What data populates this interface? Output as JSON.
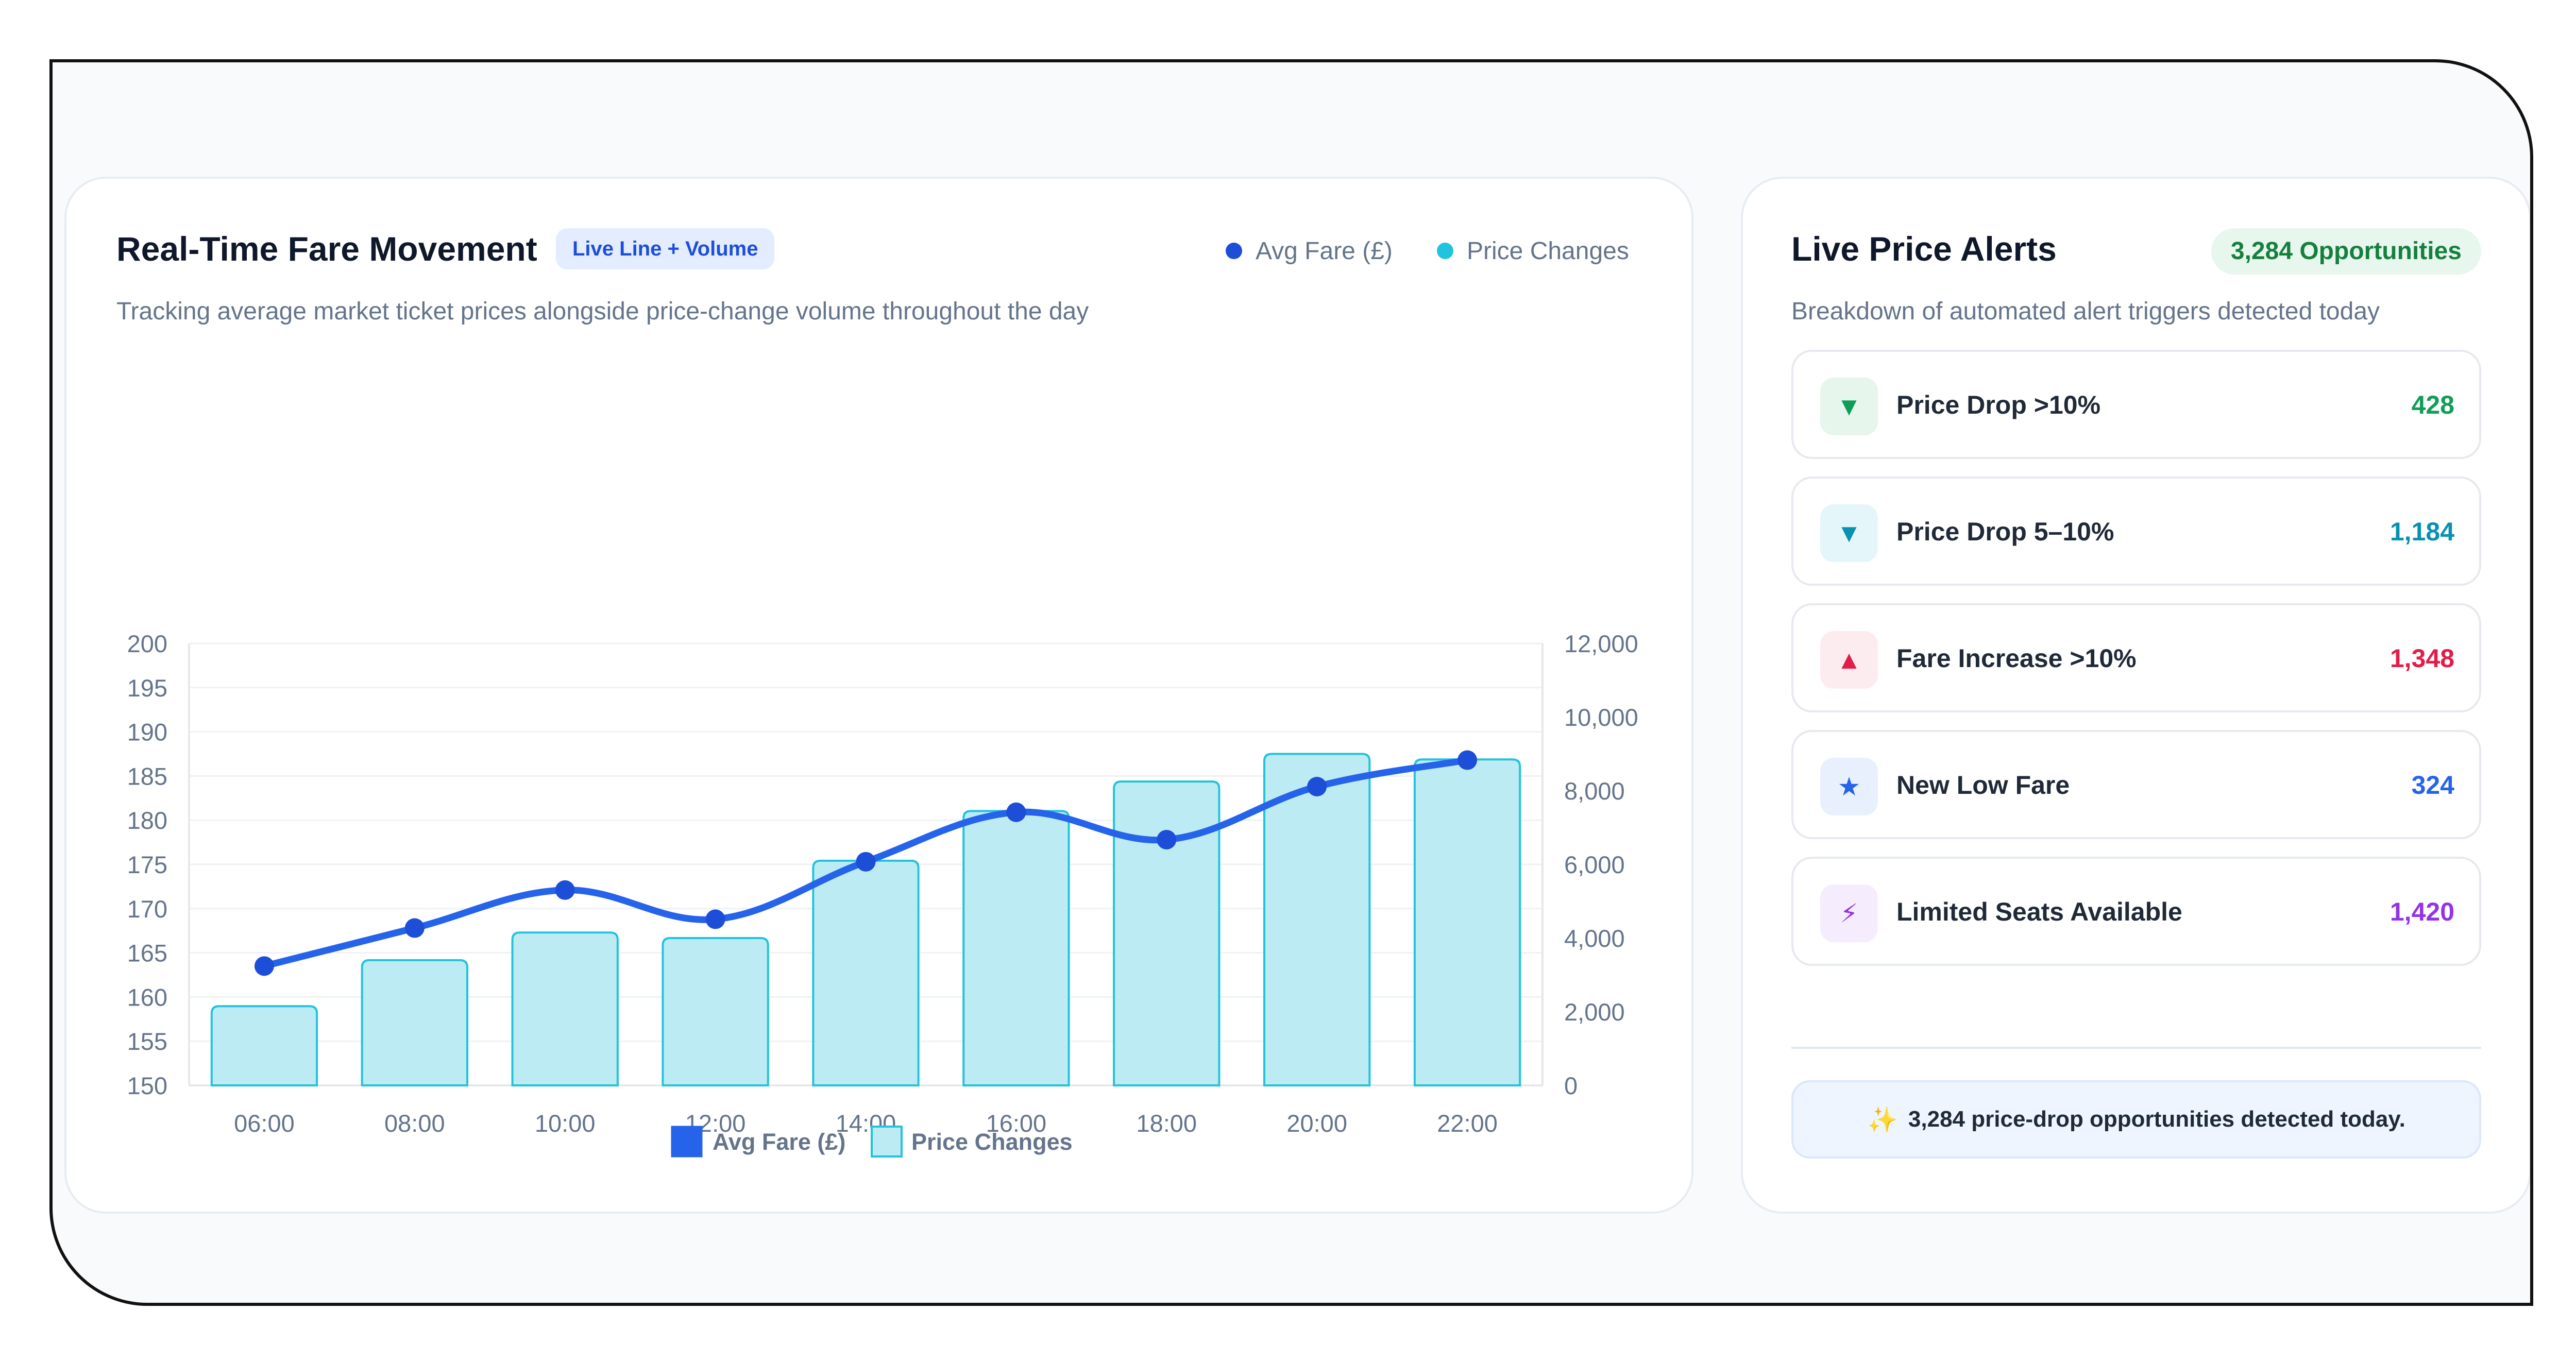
{
  "chart_card": {
    "title": "Real-Time Fare Movement",
    "tag": "Live Line + Volume",
    "subtitle": "Tracking average market ticket prices alongside price-change volume throughout the day",
    "legend_top": [
      {
        "label": "Avg Fare (£)",
        "color": "#1d4ed8"
      },
      {
        "label": "Price Changes",
        "color": "#22c3dc"
      }
    ]
  },
  "chart_data": {
    "type": "bar",
    "categories": [
      "06:00",
      "08:00",
      "10:00",
      "12:00",
      "14:00",
      "16:00",
      "18:00",
      "20:00",
      "22:00"
    ],
    "series": [
      {
        "name": "Avg Fare (£)",
        "type": "line",
        "axis": "left",
        "color": "#2563eb",
        "values": [
          163.5,
          167.8,
          172.1,
          168.8,
          175.3,
          180.9,
          177.8,
          183.8,
          186.8
        ]
      },
      {
        "name": "Price Changes",
        "type": "bar",
        "axis": "right",
        "color": "#22c3dc",
        "values": [
          2150,
          3400,
          4150,
          4000,
          6100,
          7450,
          8250,
          9000,
          8850
        ]
      }
    ],
    "left_ticks": [
      "200",
      "195",
      "190",
      "185",
      "180",
      "175",
      "170",
      "165",
      "160",
      "155",
      "150"
    ],
    "left_ylim": [
      150,
      200
    ],
    "right_ticks": [
      "12,000",
      "10,000",
      "8,000",
      "6,000",
      "4,000",
      "2,000",
      "0"
    ],
    "right_ylim": [
      0,
      12000
    ],
    "bottom_legend": [
      "Avg Fare (£)",
      "Price Changes"
    ],
    "grid": true
  },
  "alerts": {
    "title": "Live Price Alerts",
    "badge": "3,284 Opportunities",
    "subtitle": "Breakdown of automated alert triggers detected today",
    "items": [
      {
        "label": "Price Drop >10%",
        "count": "428",
        "icon": "triangle-down-icon",
        "glyph": "▼",
        "color": "#0f9d58",
        "bg": "#e6f6ec"
      },
      {
        "label": "Price Drop 5–10%",
        "count": "1,184",
        "icon": "triangle-down-icon",
        "glyph": "▼",
        "color": "#0891b2",
        "bg": "#e4f6fa"
      },
      {
        "label": "Fare Increase >10%",
        "count": "1,348",
        "icon": "triangle-up-icon",
        "glyph": "▲",
        "color": "#e11d48",
        "bg": "#fdecef"
      },
      {
        "label": "New Low Fare",
        "count": "324",
        "icon": "star-icon",
        "glyph": "★",
        "color": "#2563eb",
        "bg": "#e9f0fd"
      },
      {
        "label": "Limited Seats Available",
        "count": "1,420",
        "icon": "lightning-icon",
        "glyph": "⚡",
        "color": "#9333ea",
        "bg": "#f5edfd"
      }
    ],
    "note": "3,284 price-drop opportunities detected today.",
    "note_icon": "sparkle-icon"
  }
}
